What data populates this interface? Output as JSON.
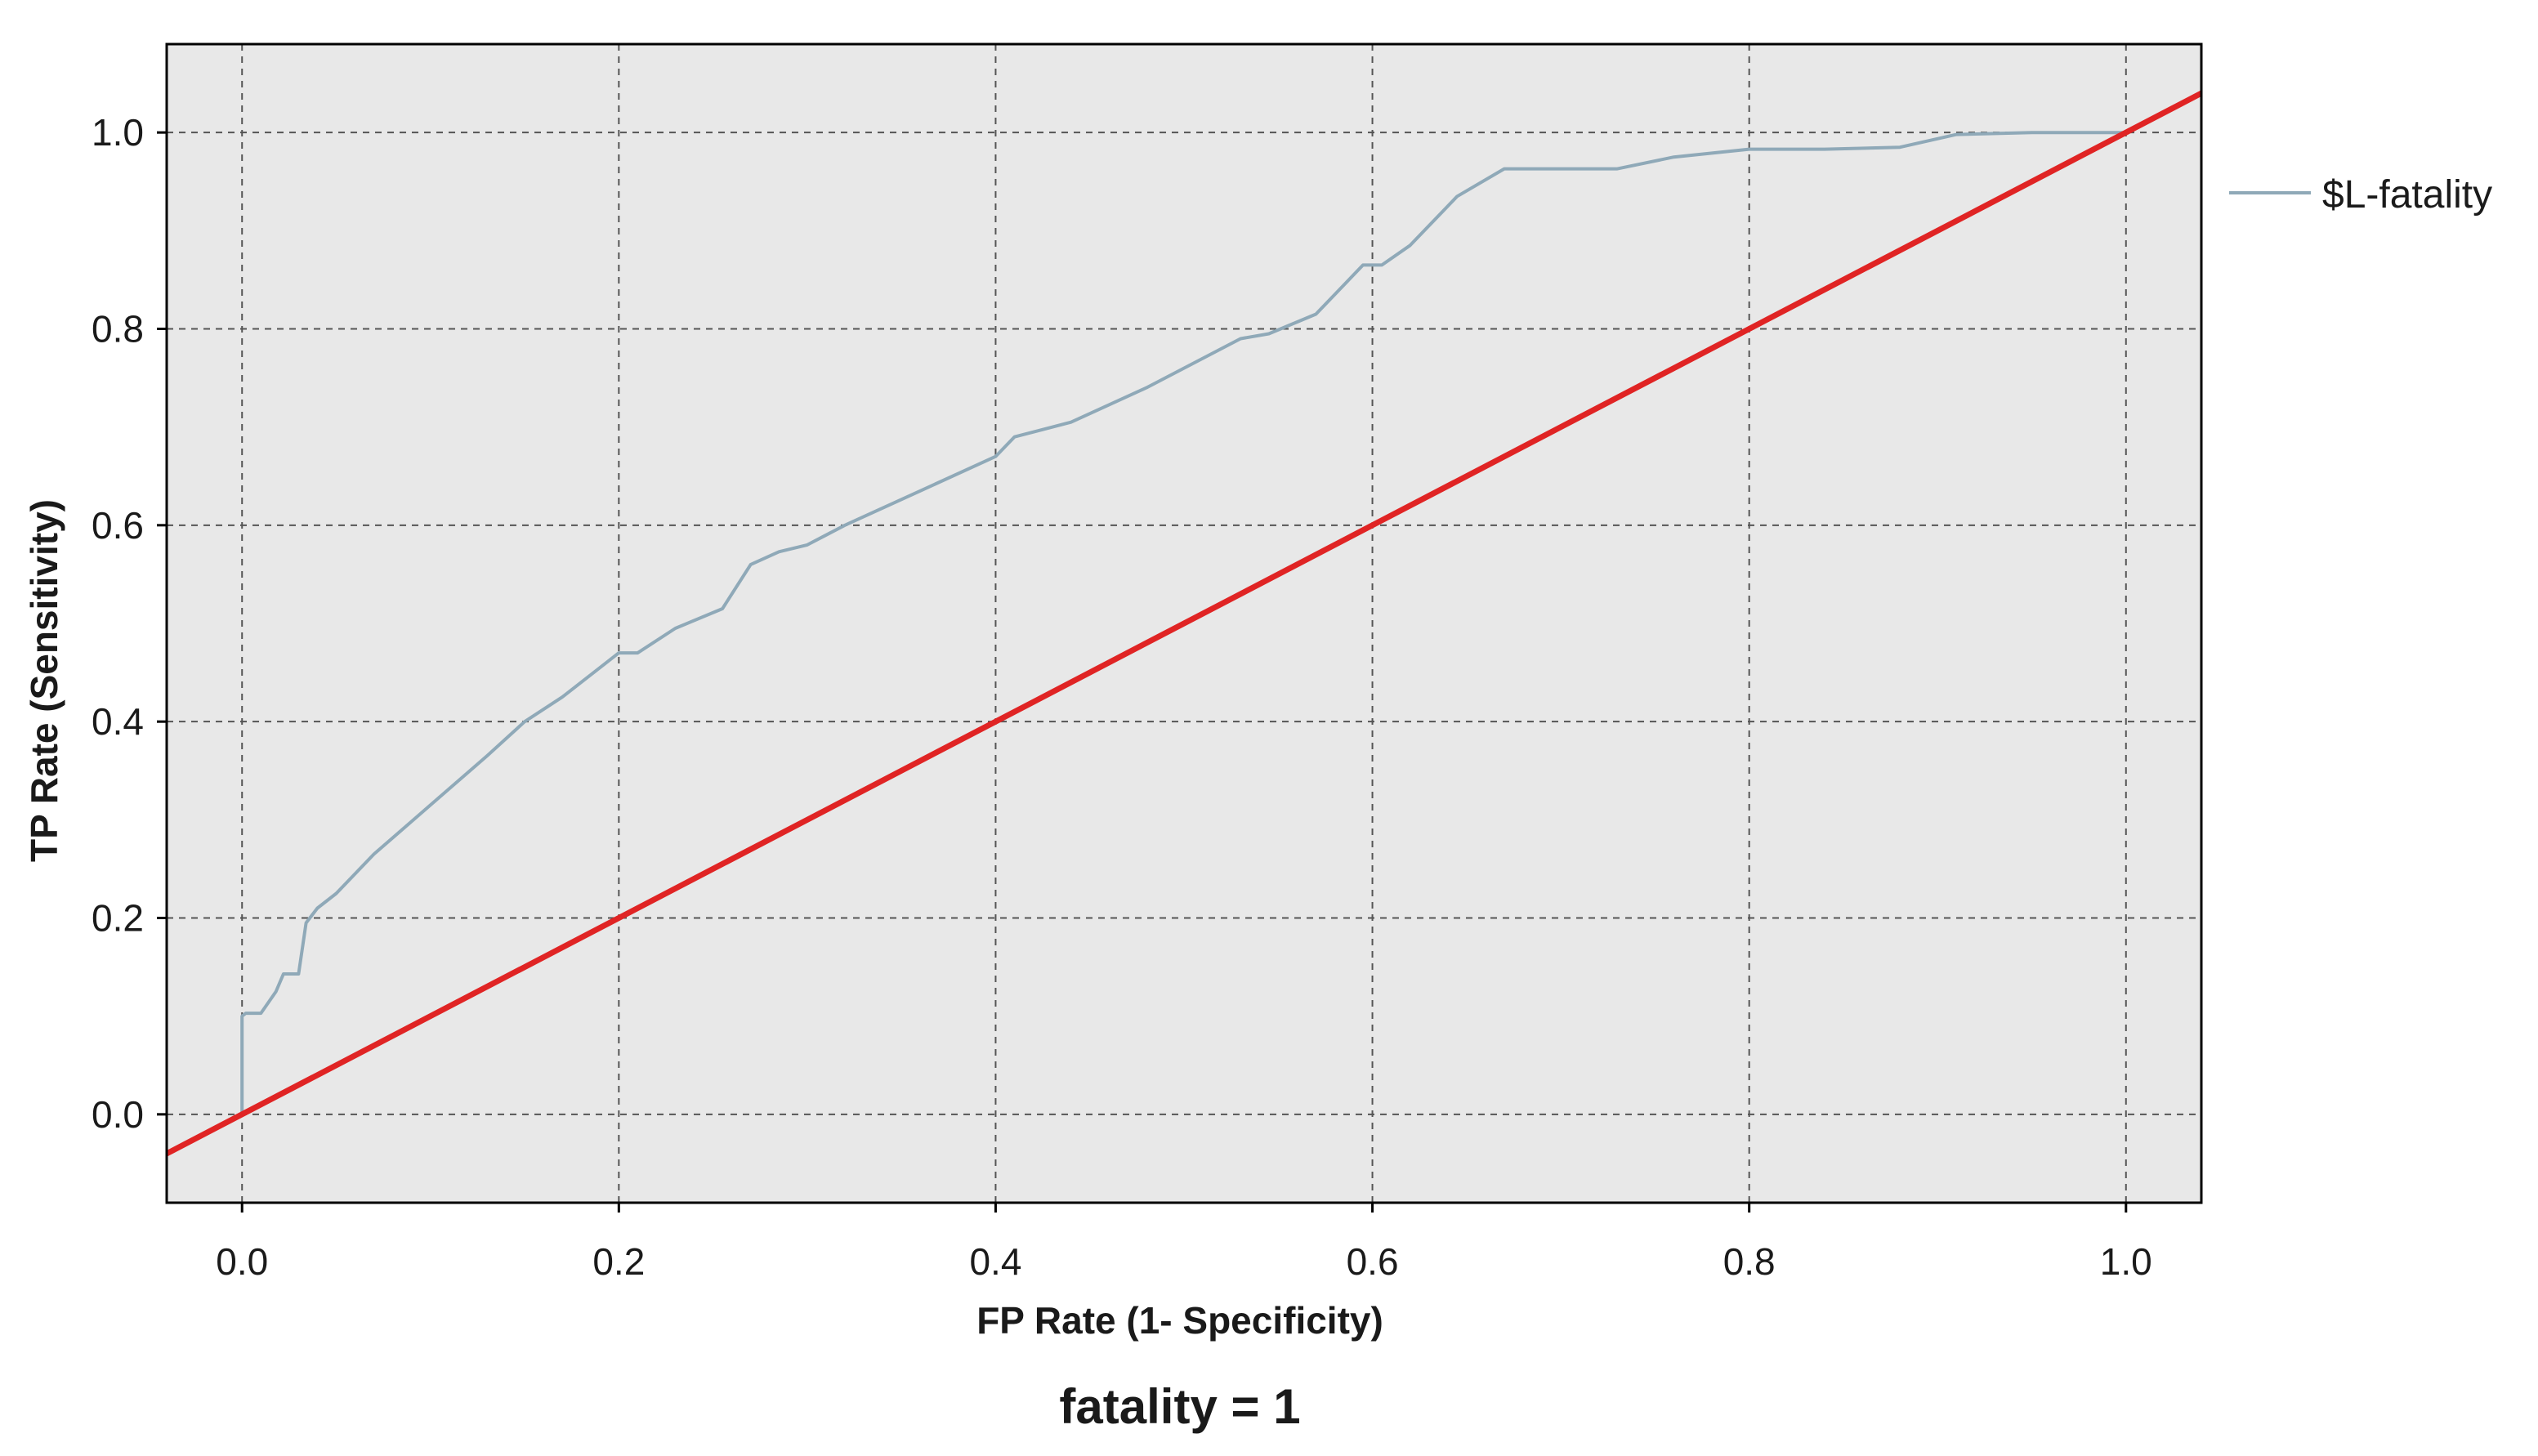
{
  "chart_data": {
    "type": "line",
    "title": "fatality = 1",
    "xlabel": "FP Rate (1- Specificity)",
    "ylabel": "TP Rate (Sensitivity)",
    "xlim": [
      -0.04,
      1.04
    ],
    "ylim": [
      -0.09,
      1.09
    ],
    "xticks": [
      "0.0",
      "0.2",
      "0.4",
      "0.6",
      "0.8",
      "1.0"
    ],
    "yticks": [
      "0.0",
      "0.2",
      "0.4",
      "0.6",
      "0.8",
      "1.0"
    ],
    "grid": true,
    "legend_position": "right-top",
    "background": "#e8e8e8",
    "series": [
      {
        "name": "$L-fatality",
        "color": "#8fa9b8",
        "x": [
          0.0,
          0.0,
          0.002,
          0.01,
          0.018,
          0.022,
          0.03,
          0.034,
          0.04,
          0.05,
          0.07,
          0.1,
          0.13,
          0.15,
          0.17,
          0.19,
          0.2,
          0.21,
          0.23,
          0.255,
          0.27,
          0.285,
          0.3,
          0.32,
          0.36,
          0.4,
          0.41,
          0.44,
          0.48,
          0.53,
          0.545,
          0.57,
          0.595,
          0.605,
          0.62,
          0.645,
          0.67,
          0.7,
          0.73,
          0.76,
          0.8,
          0.84,
          0.88,
          0.91,
          0.95,
          0.98,
          1.0
        ],
        "y": [
          0.0,
          0.1,
          0.103,
          0.103,
          0.125,
          0.143,
          0.143,
          0.195,
          0.21,
          0.225,
          0.265,
          0.315,
          0.365,
          0.4,
          0.425,
          0.455,
          0.47,
          0.47,
          0.495,
          0.515,
          0.56,
          0.573,
          0.58,
          0.6,
          0.635,
          0.67,
          0.69,
          0.705,
          0.74,
          0.79,
          0.795,
          0.815,
          0.865,
          0.865,
          0.885,
          0.935,
          0.963,
          0.963,
          0.963,
          0.975,
          0.983,
          0.983,
          0.985,
          0.998,
          1.0,
          1.0,
          1.0
        ]
      },
      {
        "name": "",
        "color": "#e02424",
        "x": [
          -0.04,
          1.04
        ],
        "y": [
          -0.04,
          1.04
        ]
      }
    ]
  }
}
